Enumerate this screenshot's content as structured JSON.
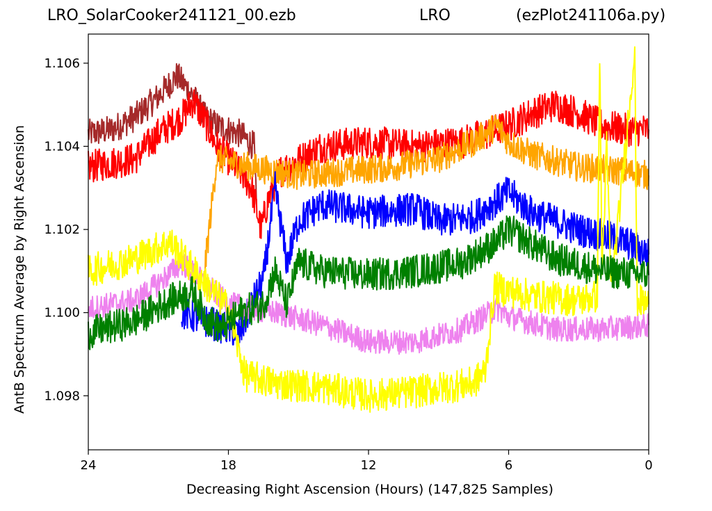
{
  "chart_data": {
    "type": "line",
    "title_parts": [
      "LRO_SolarCooker241121_00.ezb",
      "LRO",
      "(ezPlot241106a.py)"
    ],
    "xlabel": "Decreasing Right Ascension (Hours) (147,825 Samples)",
    "ylabel": "AntB Spectrum Average by Right Ascension",
    "xlim": [
      24,
      0
    ],
    "ylim": [
      1.0967,
      1.1067
    ],
    "x_ticks": [
      24,
      18,
      12,
      6,
      0
    ],
    "x_tick_labels": [
      "24",
      "18",
      "12",
      "6",
      "0"
    ],
    "y_ticks": [
      1.098,
      1.1,
      1.102,
      1.104,
      1.106
    ],
    "y_tick_labels": [
      "1.098",
      "1.100",
      "1.102",
      "1.104",
      "1.106"
    ],
    "grid": false,
    "series": [
      {
        "color": "#a52a2a",
        "points": [
          [
            24,
            1.1043
          ],
          [
            23,
            1.1044
          ],
          [
            22,
            1.1047
          ],
          [
            21,
            1.1052
          ],
          [
            20.2,
            1.1057
          ],
          [
            19.5,
            1.1052
          ],
          [
            19,
            1.1047
          ],
          [
            18.5,
            1.1045
          ],
          [
            17.5,
            1.1043
          ],
          [
            16.9,
            1.104
          ],
          [
            16.8,
            1.1026
          ]
        ],
        "noise": 0.00035
      },
      {
        "color": "#ff0000",
        "points": [
          [
            24,
            1.1035
          ],
          [
            22,
            1.1037
          ],
          [
            21,
            1.1043
          ],
          [
            20,
            1.1047
          ],
          [
            19.5,
            1.1051
          ],
          [
            19,
            1.1046
          ],
          [
            18.5,
            1.104
          ],
          [
            17.5,
            1.1034
          ],
          [
            17,
            1.103
          ],
          [
            16.6,
            1.102
          ],
          [
            16.3,
            1.1027
          ],
          [
            15.8,
            1.1034
          ],
          [
            14,
            1.104
          ],
          [
            12,
            1.1041
          ],
          [
            10,
            1.104
          ],
          [
            8,
            1.1041
          ],
          [
            6,
            1.1045
          ],
          [
            5,
            1.1048
          ],
          [
            4,
            1.105
          ],
          [
            3,
            1.1048
          ],
          [
            2,
            1.1045
          ],
          [
            1,
            1.1044
          ],
          [
            0,
            1.1044
          ]
        ],
        "noise": 0.0004
      },
      {
        "color": "#ffa500",
        "points": [
          [
            19,
            1.1011
          ],
          [
            18.5,
            1.1037
          ],
          [
            17,
            1.1035
          ],
          [
            15,
            1.1033
          ],
          [
            13,
            1.1034
          ],
          [
            11,
            1.1035
          ],
          [
            9,
            1.1037
          ],
          [
            7.5,
            1.1041
          ],
          [
            6.5,
            1.1045
          ],
          [
            6,
            1.1041
          ],
          [
            5,
            1.1038
          ],
          [
            3,
            1.1035
          ],
          [
            1,
            1.1034
          ],
          [
            0,
            1.1033
          ]
        ],
        "noise": 0.00035
      },
      {
        "color": "#0000ff",
        "points": [
          [
            20,
            1.1
          ],
          [
            18.5,
            1.0997
          ],
          [
            17.5,
            1.0995
          ],
          [
            17,
            1.1002
          ],
          [
            16.5,
            1.1008
          ],
          [
            16,
            1.103
          ],
          [
            15.5,
            1.1012
          ],
          [
            15,
            1.1022
          ],
          [
            14,
            1.1026
          ],
          [
            12,
            1.1024
          ],
          [
            10,
            1.1025
          ],
          [
            9,
            1.1022
          ],
          [
            7.5,
            1.1023
          ],
          [
            6,
            1.1029
          ],
          [
            5,
            1.1024
          ],
          [
            3,
            1.102
          ],
          [
            1,
            1.1017
          ],
          [
            0,
            1.1014
          ]
        ],
        "noise": 0.0004
      },
      {
        "color": "#ee82ee",
        "points": [
          [
            24,
            1.1001
          ],
          [
            22,
            1.1003
          ],
          [
            21,
            1.1007
          ],
          [
            20,
            1.1012
          ],
          [
            19,
            1.1007
          ],
          [
            18,
            1.1002
          ],
          [
            16,
            1.1
          ],
          [
            14,
            1.0997
          ],
          [
            12,
            1.0993
          ],
          [
            10,
            1.0993
          ],
          [
            8,
            1.0996
          ],
          [
            6.5,
            1.1001
          ],
          [
            6,
            1.0999
          ],
          [
            4,
            1.0996
          ],
          [
            2,
            1.0996
          ],
          [
            0,
            1.0997
          ]
        ],
        "noise": 0.0003
      },
      {
        "color": "#ffff00",
        "points": [
          [
            24,
            1.101
          ],
          [
            22,
            1.1013
          ],
          [
            20.5,
            1.1017
          ],
          [
            19,
            1.1007
          ],
          [
            18,
            1.1001
          ],
          [
            17.3,
            1.0985
          ],
          [
            16,
            1.0983
          ],
          [
            14,
            1.0982
          ],
          [
            12,
            1.098
          ],
          [
            10,
            1.0981
          ],
          [
            7.5,
            1.0983
          ],
          [
            7,
            1.0986
          ],
          [
            6.6,
            1.1006
          ],
          [
            5,
            1.1004
          ],
          [
            3,
            1.1003
          ],
          [
            2.2,
            1.1004
          ],
          [
            2.1,
            1.1062
          ],
          [
            2.0,
            1.101
          ],
          [
            1.8,
            1.104
          ],
          [
            1.6,
            1.1005
          ],
          [
            0.6,
            1.1063
          ],
          [
            0.5,
            1.1003
          ],
          [
            0,
            1.1002
          ]
        ],
        "noise": 0.0004
      },
      {
        "color": "#008000",
        "points": [
          [
            24,
            1.0995
          ],
          [
            22,
            1.0998
          ],
          [
            20.5,
            1.1003
          ],
          [
            19.5,
            1.1005
          ],
          [
            19,
            1.0999
          ],
          [
            18.3,
            1.0996
          ],
          [
            17.5,
            1.1
          ],
          [
            16.5,
            1.1002
          ],
          [
            16,
            1.101
          ],
          [
            15.5,
            1.1002
          ],
          [
            15,
            1.1012
          ],
          [
            14,
            1.101
          ],
          [
            12,
            1.1009
          ],
          [
            10,
            1.101
          ],
          [
            8,
            1.1012
          ],
          [
            6.5,
            1.1017
          ],
          [
            6,
            1.102
          ],
          [
            4,
            1.1013
          ],
          [
            2,
            1.101
          ],
          [
            0,
            1.1009
          ]
        ],
        "noise": 0.0004
      }
    ]
  }
}
